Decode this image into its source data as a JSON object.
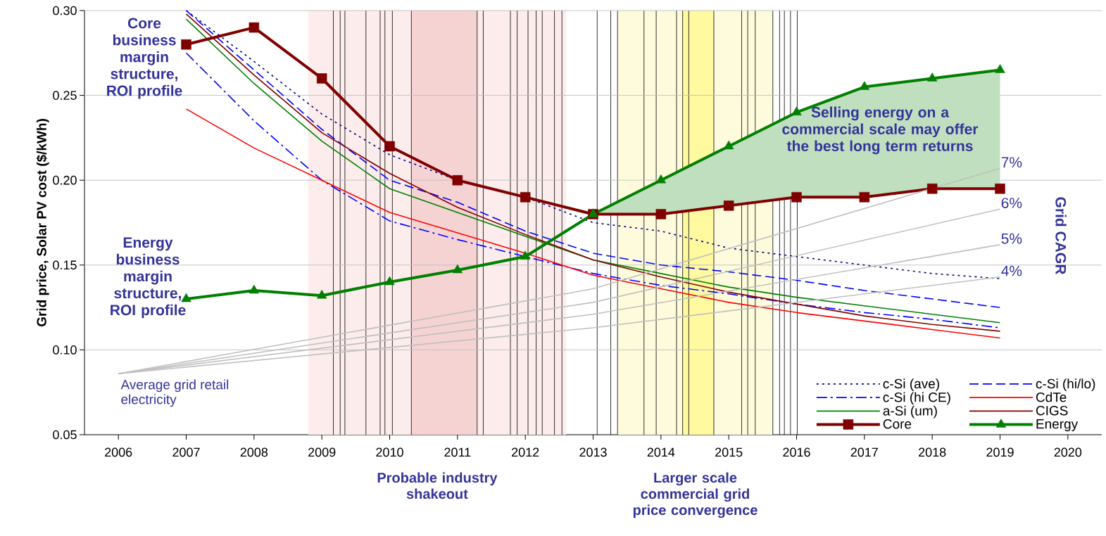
{
  "chart_data": {
    "type": "line",
    "ylabel": "Grid price, Solar PV cost ($/kWh)",
    "x": [
      2007,
      2008,
      2009,
      2010,
      2011,
      2012,
      2013,
      2014,
      2015,
      2016,
      2017,
      2018,
      2019
    ],
    "xlim": [
      2005.5,
      2020.5
    ],
    "xticks": [
      2006,
      2007,
      2008,
      2009,
      2010,
      2011,
      2012,
      2013,
      2014,
      2015,
      2016,
      2017,
      2018,
      2019,
      2020
    ],
    "ylim": [
      0.05,
      0.3
    ],
    "yticks": [
      0.05,
      {
        "value": 0.1,
        "label": "0.10"
      },
      0.15,
      {
        "value": 0.2,
        "label": "0.20"
      },
      0.25,
      {
        "value": 0.3,
        "label": "0.30"
      }
    ],
    "grid": "y",
    "legend": "bottom right",
    "series": [
      {
        "name": "c-Si (ave)",
        "color": "#000080",
        "line_style": "dotted",
        "marker": "none",
        "values": [
          0.3,
          0.27,
          0.239,
          0.215,
          0.2,
          0.19,
          0.175,
          0.17,
          0.16,
          0.155,
          0.15,
          0.145,
          0.142
        ]
      },
      {
        "name": "c-Si (hi/lo)",
        "color": "#0000ff",
        "line_style": "dashed",
        "marker": "none",
        "values": [
          0.3,
          0.265,
          0.23,
          0.2,
          0.187,
          0.17,
          0.157,
          0.15,
          0.146,
          0.141,
          0.135,
          0.13,
          0.125
        ]
      },
      {
        "name": "c-Si (hi CE)",
        "color": "#0000ff",
        "line_style": "dashdot",
        "marker": "none",
        "values": [
          0.275,
          0.235,
          0.2,
          0.176,
          0.165,
          0.155,
          0.145,
          0.138,
          0.133,
          0.127,
          0.122,
          0.118,
          0.113
        ]
      },
      {
        "name": "CdTe",
        "color": "#ff0000",
        "line_style": "solid",
        "marker": "none",
        "values": [
          0.242,
          0.219,
          0.2,
          0.181,
          0.169,
          0.157,
          0.144,
          0.136,
          0.128,
          0.122,
          0.117,
          0.112,
          0.107
        ]
      },
      {
        "name": "a-Si (um)",
        "color": "#008000",
        "line_style": "solid",
        "marker": "none",
        "values": [
          0.295,
          0.257,
          0.223,
          0.195,
          0.181,
          0.167,
          0.153,
          0.145,
          0.137,
          0.131,
          0.126,
          0.121,
          0.116
        ]
      },
      {
        "name": "CIGS",
        "color": "#800000",
        "line_style": "solid",
        "marker": "none",
        "values": [
          0.298,
          0.262,
          0.228,
          0.204,
          0.184,
          0.168,
          0.153,
          0.143,
          0.134,
          0.127,
          0.12,
          0.115,
          0.111
        ]
      },
      {
        "name": "Core",
        "color": "#800000",
        "line_style": "solid",
        "marker": "square",
        "values": [
          0.28,
          0.29,
          0.26,
          0.22,
          0.2,
          0.19,
          0.18,
          0.18,
          0.185,
          0.19,
          0.19,
          0.195,
          0.195
        ]
      },
      {
        "name": "Energy",
        "color": "#008000",
        "line_style": "solid",
        "marker": "triangle",
        "values": [
          0.13,
          0.135,
          0.132,
          0.14,
          0.147,
          0.155,
          0.18,
          0.2,
          0.22,
          0.24,
          0.255,
          0.26,
          0.265
        ],
        "lower": [
          null,
          null,
          null,
          null,
          null,
          null,
          0.18,
          0.18,
          0.185,
          0.19,
          0.19,
          0.195,
          0.195
        ],
        "upper": [
          null,
          null,
          null,
          null,
          null,
          null,
          0.18,
          0.2,
          0.22,
          0.24,
          0.255,
          0.26,
          0.265
        ]
      },
      {
        "name": "7%",
        "color": "#c0c0c0",
        "line_style": "solid",
        "marker": "none",
        "x": [
          2006,
          2013,
          2019
        ],
        "values": [
          0.086,
          0.136,
          0.207
        ]
      },
      {
        "name": "6%",
        "color": "#c0c0c0",
        "line_style": "solid",
        "marker": "none",
        "x": [
          2006,
          2013,
          2019
        ],
        "values": [
          0.086,
          0.128,
          0.183
        ]
      },
      {
        "name": "5%",
        "color": "#c0c0c0",
        "line_style": "solid",
        "marker": "none",
        "x": [
          2006,
          2013,
          2019
        ],
        "values": [
          0.086,
          0.121,
          0.162
        ]
      },
      {
        "name": "4%",
        "color": "#c0c0c0",
        "line_style": "solid",
        "marker": "none",
        "x": [
          2006,
          2013,
          2019
        ],
        "values": [
          0.086,
          0.113,
          0.143
        ]
      }
    ],
    "bands": [
      {
        "axis": "x",
        "from": 2008.8,
        "to": 2012.6,
        "color": "#fcecec",
        "label": "Probable industry shakeout"
      },
      {
        "axis": "x",
        "from": 2010.32,
        "to": 2011.29,
        "color": "#f6d3d3"
      },
      {
        "axis": "x",
        "from": 2013.36,
        "to": 2015.65,
        "color": "#fefbdc",
        "label": "Larger scale commercial grid price convergence"
      },
      {
        "axis": "x",
        "from": 2014.32,
        "to": 2014.78,
        "color": "#fff9a0"
      }
    ],
    "ref_lines": [
      {
        "axis": "x",
        "value": 2009.17,
        "color": "#000000"
      },
      {
        "axis": "x",
        "value": 2009.27,
        "color": "#000000"
      },
      {
        "axis": "x",
        "value": 2009.34,
        "color": "#000000"
      },
      {
        "axis": "x",
        "value": 2009.65,
        "color": "#000000"
      },
      {
        "axis": "x",
        "value": 2009.86,
        "color": "#000000"
      },
      {
        "axis": "x",
        "value": 2009.93,
        "color": "#000000"
      },
      {
        "axis": "x",
        "value": 2010.04,
        "color": "#000000"
      },
      {
        "axis": "x",
        "value": 2010.32,
        "color": "#000000"
      },
      {
        "axis": "x",
        "value": 2011.29,
        "color": "#000000"
      },
      {
        "axis": "x",
        "value": 2011.38,
        "color": "#000000"
      },
      {
        "axis": "x",
        "value": 2011.78,
        "color": "#000000"
      },
      {
        "axis": "x",
        "value": 2011.88,
        "color": "#000000"
      },
      {
        "axis": "x",
        "value": 2012.04,
        "color": "#000000"
      },
      {
        "axis": "x",
        "value": 2012.16,
        "color": "#000000"
      },
      {
        "axis": "x",
        "value": 2012.25,
        "color": "#000000"
      },
      {
        "axis": "x",
        "value": 2012.43,
        "color": "#000000"
      },
      {
        "axis": "x",
        "value": 2012.54,
        "color": "#000000"
      },
      {
        "axis": "x",
        "value": 2013.06,
        "color": "#000000"
      },
      {
        "axis": "x",
        "value": 2013.26,
        "color": "#000000"
      },
      {
        "axis": "x",
        "value": 2013.36,
        "color": "#000000"
      },
      {
        "axis": "x",
        "value": 2013.75,
        "color": "#000000"
      },
      {
        "axis": "x",
        "value": 2013.93,
        "color": "#000000"
      },
      {
        "axis": "x",
        "value": 2014.23,
        "color": "#000000"
      },
      {
        "axis": "x",
        "value": 2014.32,
        "color": "#000000"
      },
      {
        "axis": "x",
        "value": 2014.41,
        "color": "#000000"
      },
      {
        "axis": "x",
        "value": 2014.78,
        "color": "#000000"
      },
      {
        "axis": "x",
        "value": 2015.19,
        "color": "#000000"
      },
      {
        "axis": "x",
        "value": 2015.28,
        "color": "#000000"
      },
      {
        "axis": "x",
        "value": 2015.39,
        "color": "#000000"
      },
      {
        "axis": "x",
        "value": 2015.65,
        "color": "#000000"
      },
      {
        "axis": "x",
        "value": 2015.75,
        "color": "#000000"
      },
      {
        "axis": "x",
        "value": 2015.82,
        "color": "#000000"
      },
      {
        "axis": "x",
        "value": 2015.91,
        "color": "#000000"
      },
      {
        "axis": "x",
        "value": 2016.01,
        "color": "#000000"
      }
    ],
    "annotations": [
      "Core business margin structure, ROI profile",
      "Energy business margin structure, ROI profile",
      "Average grid retail electricity",
      "Selling energy on a commercial scale may offer the best long term returns",
      "Grid CAGR"
    ]
  }
}
